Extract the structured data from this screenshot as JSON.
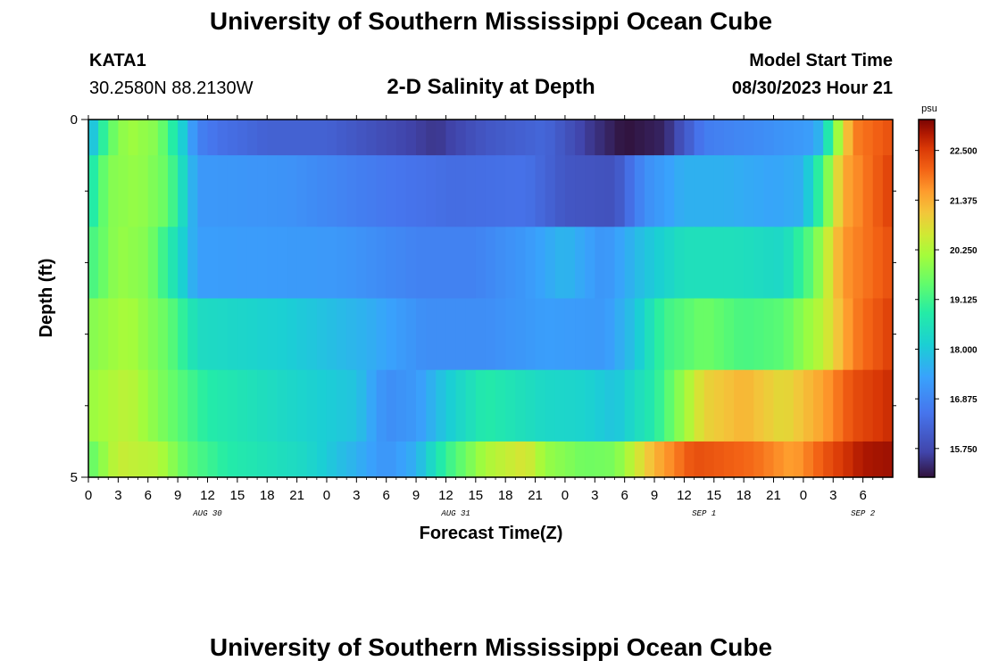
{
  "header": {
    "title": "University of Southern Mississippi Ocean Cube",
    "station": "KATA1",
    "coords": "30.2580N  88.2130W",
    "subtitle": "2-D Salinity at Depth",
    "start_label": "Model Start Time",
    "start_value": "08/30/2023 Hour 21"
  },
  "footer": {
    "title": "University of Southern Mississippi Ocean Cube"
  },
  "chart_data": {
    "type": "heatmap",
    "title": "2-D Salinity at Depth",
    "xlabel": "Forecast Time(Z)",
    "ylabel": "Depth (ft)",
    "xlim": [
      0,
      81
    ],
    "ylim": [
      0,
      5
    ],
    "x_ticks": [
      "0",
      "3",
      "6",
      "9",
      "12",
      "15",
      "18",
      "21",
      "0",
      "3",
      "6",
      "9",
      "12",
      "15",
      "18",
      "21",
      "0",
      "3",
      "6",
      "9",
      "12",
      "15",
      "18",
      "21",
      "0",
      "3",
      "6"
    ],
    "y_ticks": [
      "0",
      "5"
    ],
    "date_labels": [
      {
        "label": "AUG 30",
        "x": 12
      },
      {
        "label": "AUG 31",
        "x": 37
      },
      {
        "label": "SEP 1",
        "x": 62
      },
      {
        "label": "SEP 2",
        "x": 78
      }
    ],
    "colorbar": {
      "unit": "psu",
      "min": 15.1,
      "max": 23.2,
      "ticks": [
        "22.500",
        "21.375",
        "20.250",
        "19.125",
        "18.000",
        "16.875",
        "15.750"
      ]
    },
    "depth_layers": [
      0.5,
      1.5,
      2.5,
      3.5,
      4.5
    ],
    "layer_breakpoints": [
      [
        [
          0,
          17.5
        ],
        [
          2,
          19.4
        ],
        [
          4,
          20.1
        ],
        [
          7,
          19.8
        ],
        [
          9,
          18.5
        ],
        [
          11,
          16.8
        ],
        [
          13,
          16.5
        ],
        [
          18,
          16.2
        ],
        [
          24,
          16.2
        ],
        [
          30,
          15.8
        ],
        [
          35,
          15.5
        ],
        [
          40,
          16.0
        ],
        [
          46,
          16.3
        ],
        [
          50,
          15.6
        ],
        [
          54,
          15.1
        ],
        [
          58,
          15.3
        ],
        [
          62,
          16.7
        ],
        [
          68,
          17.0
        ],
        [
          73,
          17.3
        ],
        [
          74,
          17.9
        ],
        [
          75,
          19.5
        ],
        [
          77,
          21.8
        ],
        [
          81,
          22.3
        ]
      ],
      [
        [
          0,
          18.5
        ],
        [
          2,
          19.8
        ],
        [
          5,
          20.0
        ],
        [
          8,
          19.5
        ],
        [
          10,
          18.0
        ],
        [
          11,
          17.2
        ],
        [
          20,
          17.1
        ],
        [
          30,
          16.6
        ],
        [
          37,
          16.4
        ],
        [
          44,
          16.5
        ],
        [
          48,
          16.0
        ],
        [
          53,
          15.9
        ],
        [
          56,
          17.0
        ],
        [
          60,
          17.6
        ],
        [
          64,
          17.6
        ],
        [
          69,
          17.4
        ],
        [
          72,
          17.6
        ],
        [
          74,
          19.3
        ],
        [
          76,
          21.4
        ],
        [
          81,
          22.5
        ]
      ],
      [
        [
          0,
          19.1
        ],
        [
          3,
          20.0
        ],
        [
          6,
          19.8
        ],
        [
          9,
          18.4
        ],
        [
          11,
          17.3
        ],
        [
          25,
          17.2
        ],
        [
          33,
          16.8
        ],
        [
          39,
          16.8
        ],
        [
          44,
          17.2
        ],
        [
          48,
          17.7
        ],
        [
          52,
          17.1
        ],
        [
          56,
          17.9
        ],
        [
          60,
          18.5
        ],
        [
          65,
          18.5
        ],
        [
          70,
          18.3
        ],
        [
          73,
          19.5
        ],
        [
          76,
          21.6
        ],
        [
          81,
          22.3
        ]
      ],
      [
        [
          0,
          19.8
        ],
        [
          4,
          20.2
        ],
        [
          8,
          19.5
        ],
        [
          11,
          18.4
        ],
        [
          20,
          18.1
        ],
        [
          28,
          17.6
        ],
        [
          34,
          17.0
        ],
        [
          40,
          17.0
        ],
        [
          46,
          17.3
        ],
        [
          52,
          17.2
        ],
        [
          55,
          17.9
        ],
        [
          58,
          19.1
        ],
        [
          62,
          19.6
        ],
        [
          66,
          19.2
        ],
        [
          70,
          19.4
        ],
        [
          74,
          20.4
        ],
        [
          77,
          21.8
        ],
        [
          81,
          22.5
        ]
      ],
      [
        [
          0,
          20.0
        ],
        [
          4,
          20.4
        ],
        [
          8,
          19.6
        ],
        [
          12,
          18.8
        ],
        [
          20,
          18.3
        ],
        [
          27,
          17.9
        ],
        [
          30,
          17.0
        ],
        [
          33,
          17.2
        ],
        [
          36,
          18.0
        ],
        [
          40,
          18.8
        ],
        [
          46,
          18.3
        ],
        [
          50,
          18.2
        ],
        [
          53,
          17.9
        ],
        [
          57,
          18.8
        ],
        [
          62,
          20.9
        ],
        [
          66,
          21.3
        ],
        [
          70,
          20.8
        ],
        [
          74,
          21.5
        ],
        [
          77,
          22.3
        ],
        [
          81,
          22.7
        ]
      ],
      [
        [
          0,
          19.4
        ],
        [
          3,
          20.5
        ],
        [
          7,
          20.3
        ],
        [
          10,
          19.4
        ],
        [
          14,
          18.8
        ],
        [
          22,
          18.3
        ],
        [
          27,
          17.6
        ],
        [
          30,
          17.1
        ],
        [
          33,
          17.6
        ],
        [
          36,
          19.0
        ],
        [
          40,
          20.2
        ],
        [
          44,
          20.7
        ],
        [
          46,
          20.0
        ],
        [
          50,
          19.6
        ],
        [
          53,
          19.7
        ],
        [
          57,
          21.3
        ],
        [
          61,
          22.3
        ],
        [
          67,
          22.0
        ],
        [
          71,
          21.5
        ],
        [
          75,
          22.4
        ],
        [
          78,
          22.9
        ],
        [
          81,
          23.0
        ]
      ]
    ]
  }
}
